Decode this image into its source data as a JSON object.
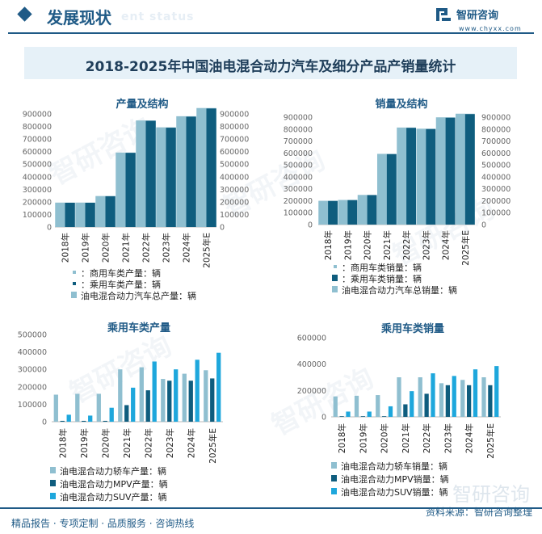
{
  "header": {
    "section_title": "发展现状",
    "section_title_en": "ent status",
    "brand_name": "智研咨询",
    "brand_url": "www.chyxx.com"
  },
  "main_title": "2018-2025年中国油电混合动力汽车及细分产品产销量统计",
  "colors": {
    "series_light": "#8fbfd0",
    "series_dark": "#0f5d7e",
    "series_sky": "#1ea7dc",
    "brand": "#1f5a86"
  },
  "chart_data": [
    {
      "id": "production_structure",
      "type": "bar",
      "title": "产量及结构",
      "categories": [
        "2018年",
        "2019年",
        "2020年",
        "2021年",
        "2022年",
        "2023年",
        "2024年",
        "2025年E"
      ],
      "series": [
        {
          "name": "：商用车类产量：辆",
          "values": [
            1200,
            1300,
            1500,
            2500,
            3000,
            3200,
            3500,
            3800
          ]
        },
        {
          "name": "：乘用车类产量：辆",
          "values": [
            193000,
            193000,
            245000,
            590000,
            845000,
            790000,
            878000,
            943000
          ]
        },
        {
          "name": "油电混合动力汽车总产量：辆",
          "values": [
            194200,
            194300,
            246500,
            592500,
            848000,
            793200,
            881500,
            946800
          ]
        }
      ],
      "ylim": [
        0,
        900000
      ],
      "yticks": [
        "900000",
        "800000",
        "700000",
        "600000",
        "500000",
        "400000",
        "300000",
        "200000",
        "100000",
        "0"
      ],
      "legend": "bottom"
    },
    {
      "id": "sales_structure",
      "type": "bar",
      "title": "销量及结构",
      "categories": [
        "2018年",
        "2019年",
        "2020年",
        "2021年",
        "2022年",
        "2023年",
        "2024年",
        "2025年E"
      ],
      "series": [
        {
          "name": "：商用车类销量：辆",
          "values": [
            1200,
            1300,
            1500,
            2500,
            3000,
            3200,
            3500,
            3800
          ]
        },
        {
          "name": "：乘用车类销量：辆",
          "values": [
            198000,
            205000,
            247000,
            590000,
            810000,
            800000,
            895000,
            925000
          ]
        },
        {
          "name": "油电混合动力汽车总销量：辆",
          "values": [
            199200,
            206300,
            248500,
            592500,
            813000,
            803200,
            898500,
            928800
          ]
        }
      ],
      "ylim": [
        0,
        900000
      ],
      "yticks": [
        "900000",
        "800000",
        "700000",
        "600000",
        "500000",
        "400000",
        "300000",
        "200000",
        "100000",
        "0"
      ],
      "legend": "bottom"
    },
    {
      "id": "passenger_production",
      "type": "bar",
      "title": "乘用车类产量",
      "categories": [
        "2018年",
        "2019年",
        "2020年",
        "2021年",
        "2022年",
        "2023年",
        "2024年",
        "2025年E"
      ],
      "series": [
        {
          "name": "油电混合动力轿车产量：辆",
          "values": [
            155000,
            160000,
            160000,
            300000,
            312000,
            245000,
            275000,
            295000
          ]
        },
        {
          "name": "油电混合动力MPV产量：辆",
          "values": [
            5000,
            5000,
            5000,
            95000,
            180000,
            235000,
            235000,
            248000
          ]
        },
        {
          "name": "油电混合动力SUV产量：辆",
          "values": [
            40000,
            35000,
            80000,
            195000,
            345000,
            300000,
            355000,
            395000
          ]
        }
      ],
      "ylim": [
        0,
        500000
      ],
      "yticks": [
        "500000",
        "400000",
        "300000",
        "200000",
        "100000",
        "0"
      ],
      "legend": "bottom"
    },
    {
      "id": "passenger_sales",
      "type": "bar",
      "title": "乘用车类销量",
      "categories": [
        "2018年",
        "2019年",
        "2020年",
        "2021年",
        "2022年",
        "2023年",
        "2024年",
        "2025年E"
      ],
      "series": [
        {
          "name": "油电混合动力轿车销量：辆",
          "values": [
            155000,
            160000,
            165000,
            300000,
            300000,
            255000,
            280000,
            300000
          ]
        },
        {
          "name": "油电混合动力MPV销量：辆",
          "values": [
            5000,
            5000,
            5000,
            95000,
            175000,
            240000,
            240000,
            240000
          ]
        },
        {
          "name": "油电混合动力SUV销量：辆",
          "values": [
            40000,
            40000,
            80000,
            195000,
            330000,
            310000,
            360000,
            385000
          ]
        }
      ],
      "ylim": [
        0,
        600000
      ],
      "yticks": [
        "600000",
        "400000",
        "200000",
        "0"
      ],
      "legend": "bottom"
    }
  ],
  "footer": {
    "links": "精品报告 · 专项定制 · 品质服务 · 咨询热线",
    "source": "资料来源：智研咨询整理",
    "watermark": "智研咨询"
  }
}
